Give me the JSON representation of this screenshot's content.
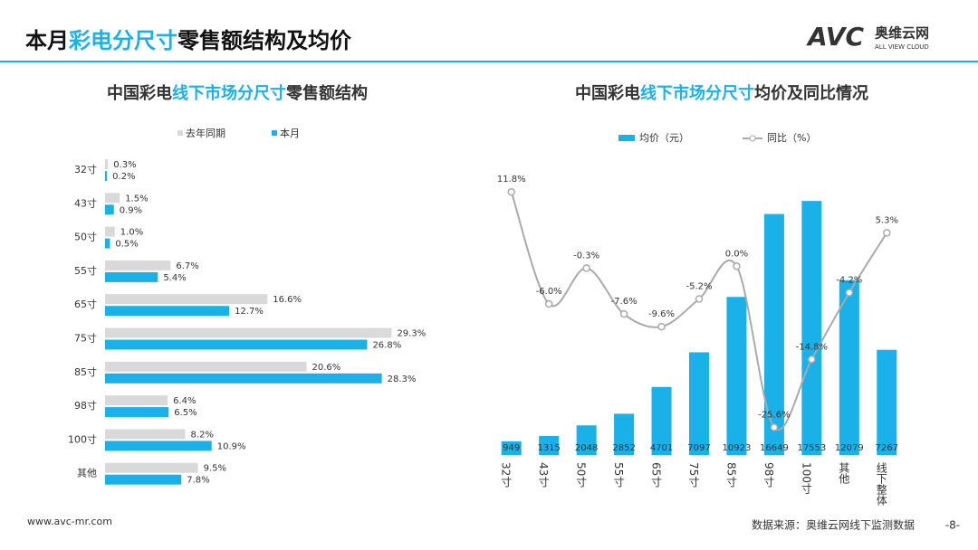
{
  "header": {
    "title": [
      "本月",
      "彩电分尺寸",
      "零售额结构及均价"
    ],
    "logo": "AVC",
    "logo_cn": "奥维云网",
    "logo_en": "ALL VIEW CLOUD"
  },
  "footer": {
    "website": "www.avc-mr.com",
    "source": "数据来源：奥维云网线下监测数据",
    "page": "-8-"
  },
  "chart_data": [
    {
      "type": "hbar",
      "title": [
        "中国彩电",
        "线下市场分尺寸",
        "零售额结构"
      ],
      "categories": [
        "32寸",
        "43寸",
        "50寸",
        "55寸",
        "65寸",
        "75寸",
        "85寸",
        "98寸",
        "100寸",
        "其他"
      ],
      "xlim": [
        0,
        35
      ],
      "series": [
        {
          "name": "去年同期",
          "color": "#d9d9d9",
          "values": [
            0.3,
            1.5,
            1.0,
            6.7,
            16.6,
            29.3,
            20.6,
            6.4,
            8.2,
            9.5
          ],
          "value_labels": [
            "0.3%",
            "1.5%",
            "1.0%",
            "6.7%",
            "16.6%",
            "29.3%",
            "20.6%",
            "6.4%",
            "8.2%",
            "9.5%"
          ]
        },
        {
          "name": "本月",
          "color": "#1ab0e8",
          "values": [
            0.2,
            0.9,
            0.5,
            5.4,
            12.7,
            26.8,
            28.3,
            6.5,
            10.9,
            7.8
          ],
          "value_labels": [
            "0.2%",
            "0.9%",
            "0.5%",
            "5.4%",
            "12.7%",
            "26.8%",
            "28.3%",
            "6.5%",
            "10.9%",
            "7.8%"
          ]
        }
      ]
    },
    {
      "type": "bar-line",
      "title": [
        "中国彩电",
        "线下市场分尺寸",
        "均价及同比情况"
      ],
      "categories": [
        "32寸",
        "43寸",
        "50寸",
        "55寸",
        "65寸",
        "75寸",
        "85寸",
        "98寸",
        "100寸",
        "其他",
        "线下整体"
      ],
      "ylim": [
        0,
        20000
      ],
      "y2lim": [
        -30,
        16
      ],
      "series": [
        {
          "name": "均价（元）",
          "color": "#1ab0e8",
          "values": [
            949,
            1315,
            2048,
            2852,
            4701,
            7097,
            10923,
            16649,
            17553,
            12079,
            7267
          ]
        },
        {
          "name": "同比（%）",
          "color": "#aaaaaa",
          "axis": "y2",
          "values": [
            11.8,
            -6.0,
            -0.3,
            -7.6,
            -9.6,
            -5.2,
            0.0,
            -25.6,
            -14.8,
            -4.2,
            5.3
          ],
          "value_labels": [
            "11.8%",
            "-6.0%",
            "-0.3%",
            "-7.6%",
            "-9.6%",
            "-5.2%",
            "0.0%",
            "-25.6%",
            "-14.8%",
            "-4.2%",
            "5.3%"
          ]
        }
      ]
    }
  ]
}
